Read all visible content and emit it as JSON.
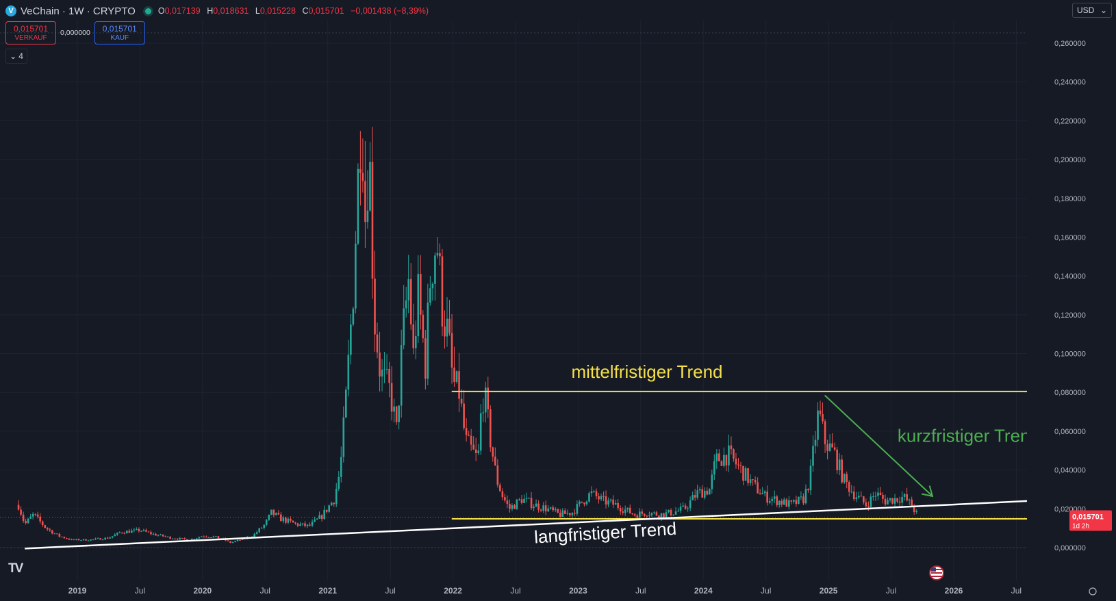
{
  "legend": {
    "logo_letter": "V",
    "title": "VeChain · 1W · CRYPTO",
    "ohlc": [
      {
        "label": "O",
        "value": "0,017139"
      },
      {
        "label": "H",
        "value": "0,018631"
      },
      {
        "label": "L",
        "value": "0,015228"
      },
      {
        "label": "C",
        "value": "0,015701"
      },
      {
        "label": "",
        "value": "−0,001438 (−8,39%)"
      }
    ]
  },
  "trade": {
    "sell_price": "0,015701",
    "sell_label": "VERKAUF",
    "spread": "0,000000",
    "buy_price": "0,015701",
    "buy_label": "KAUF"
  },
  "indicators_count": "4",
  "currency": "USD",
  "logo_text": "TV",
  "price_label": {
    "value": "0,015701",
    "countdown": "1d 2h"
  },
  "colors": {
    "background": "#161a25",
    "up": "#26a69a",
    "down": "#ef5350",
    "yellow_line": "#f5e04a",
    "white_line": "#ffffff",
    "green_arrow": "#4caf50",
    "price_tag": "#f23645"
  },
  "chart_data": {
    "type": "candlestick",
    "interval": "1W",
    "y_ticks": [
      "0,000000",
      "0,020000",
      "0,040000",
      "0,060000",
      "0,080000",
      "0,100000",
      "0,120000",
      "0,140000",
      "0,160000",
      "0,180000",
      "0,200000",
      "0,220000",
      "0,240000",
      "0,260000"
    ],
    "x_ticks": [
      "2019",
      "Jul",
      "2020",
      "Jul",
      "2021",
      "Jul",
      "2022",
      "Jul",
      "2023",
      "Jul",
      "2024",
      "Jul",
      "2025",
      "Jul",
      "2026",
      "Jul"
    ],
    "x_ticks_t": [
      2019.0,
      2019.5,
      2020.0,
      2020.5,
      2021.0,
      2021.5,
      2022.0,
      2022.5,
      2023.0,
      2023.5,
      2024.0,
      2024.5,
      2025.0,
      2025.5,
      2026.0,
      2026.5
    ],
    "ylim": [
      -0.0025,
      0.2675
    ],
    "xlim": [
      2018.38,
      2026.92
    ],
    "current_price": 0.015701,
    "close_path": [
      [
        2018.53,
        0.022
      ],
      [
        2018.58,
        0.012
      ],
      [
        2018.65,
        0.017
      ],
      [
        2018.75,
        0.01
      ],
      [
        2018.85,
        0.006
      ],
      [
        2018.95,
        0.004
      ],
      [
        2019.1,
        0.004
      ],
      [
        2019.25,
        0.005
      ],
      [
        2019.35,
        0.008
      ],
      [
        2019.45,
        0.0085
      ],
      [
        2019.5,
        0.009
      ],
      [
        2019.6,
        0.007
      ],
      [
        2019.75,
        0.005
      ],
      [
        2019.9,
        0.004
      ],
      [
        2020.0,
        0.006
      ],
      [
        2020.1,
        0.0055
      ],
      [
        2020.17,
        0.0042
      ],
      [
        2020.22,
        0.0025
      ],
      [
        2020.3,
        0.004
      ],
      [
        2020.4,
        0.006
      ],
      [
        2020.5,
        0.012
      ],
      [
        2020.55,
        0.018
      ],
      [
        2020.62,
        0.015
      ],
      [
        2020.75,
        0.012
      ],
      [
        2020.85,
        0.011
      ],
      [
        2020.95,
        0.016
      ],
      [
        2021.05,
        0.025
      ],
      [
        2021.1,
        0.04
      ],
      [
        2021.15,
        0.08
      ],
      [
        2021.2,
        0.13
      ],
      [
        2021.27,
        0.23
      ],
      [
        2021.3,
        0.17
      ],
      [
        2021.33,
        0.21
      ],
      [
        2021.37,
        0.12
      ],
      [
        2021.42,
        0.09
      ],
      [
        2021.5,
        0.08
      ],
      [
        2021.55,
        0.06
      ],
      [
        2021.6,
        0.11
      ],
      [
        2021.65,
        0.14
      ],
      [
        2021.68,
        0.095
      ],
      [
        2021.72,
        0.13
      ],
      [
        2021.78,
        0.095
      ],
      [
        2021.82,
        0.14
      ],
      [
        2021.87,
        0.16
      ],
      [
        2021.92,
        0.12
      ],
      [
        2021.96,
        0.11
      ],
      [
        2022.0,
        0.085
      ],
      [
        2022.05,
        0.08
      ],
      [
        2022.1,
        0.055
      ],
      [
        2022.15,
        0.05
      ],
      [
        2022.2,
        0.045
      ],
      [
        2022.23,
        0.075
      ],
      [
        2022.25,
        0.08
      ],
      [
        2022.3,
        0.055
      ],
      [
        2022.35,
        0.035
      ],
      [
        2022.4,
        0.026
      ],
      [
        2022.45,
        0.02
      ],
      [
        2022.55,
        0.025
      ],
      [
        2022.65,
        0.022
      ],
      [
        2022.75,
        0.02
      ],
      [
        2022.85,
        0.017
      ],
      [
        2022.95,
        0.018
      ],
      [
        2023.1,
        0.028
      ],
      [
        2023.2,
        0.024
      ],
      [
        2023.3,
        0.022
      ],
      [
        2023.45,
        0.017
      ],
      [
        2023.55,
        0.018
      ],
      [
        2023.65,
        0.017
      ],
      [
        2023.75,
        0.018
      ],
      [
        2023.85,
        0.02
      ],
      [
        2023.95,
        0.028
      ],
      [
        2024.05,
        0.03
      ],
      [
        2024.1,
        0.045
      ],
      [
        2024.2,
        0.048
      ],
      [
        2024.3,
        0.04
      ],
      [
        2024.4,
        0.032
      ],
      [
        2024.5,
        0.026
      ],
      [
        2024.6,
        0.024
      ],
      [
        2024.7,
        0.022
      ],
      [
        2024.8,
        0.025
      ],
      [
        2024.85,
        0.035
      ],
      [
        2024.92,
        0.07
      ],
      [
        2024.97,
        0.055
      ],
      [
        2025.05,
        0.048
      ],
      [
        2025.12,
        0.035
      ],
      [
        2025.2,
        0.028
      ],
      [
        2025.3,
        0.022
      ],
      [
        2025.38,
        0.028
      ],
      [
        2025.45,
        0.024
      ],
      [
        2025.52,
        0.025
      ],
      [
        2025.6,
        0.026
      ],
      [
        2025.66,
        0.022
      ],
      [
        2025.72,
        0.0157
      ]
    ],
    "annotations": [
      {
        "type": "label",
        "text": "mittelfristiger Trend",
        "t": 2023.55,
        "y": 0.0875,
        "color": "#f5e04a"
      },
      {
        "type": "label",
        "text": "kurzfristiger Trend",
        "t": 2026.12,
        "y": 0.0545,
        "color": "#4caf50"
      },
      {
        "type": "label",
        "text": "langfristiger Trend",
        "t": 2023.22,
        "y": 0.0045,
        "color": "#ffffff",
        "rotate": -3.5
      },
      {
        "type": "hline",
        "y": 0.0805,
        "t1": 2021.99,
        "t2": 2026.64,
        "color": "#f5e04a"
      },
      {
        "type": "hline",
        "y": 0.0148,
        "t1": 2021.99,
        "t2": 2026.64,
        "color": "#f5e04a"
      },
      {
        "type": "trendline",
        "from": [
          2018.58,
          -0.0005
        ],
        "to": [
          2026.88,
          0.0249
        ],
        "color": "#ffffff"
      },
      {
        "type": "arrow",
        "from": [
          2024.97,
          0.0785
        ],
        "to": [
          2025.83,
          0.0265
        ],
        "color": "#4caf50"
      }
    ]
  }
}
